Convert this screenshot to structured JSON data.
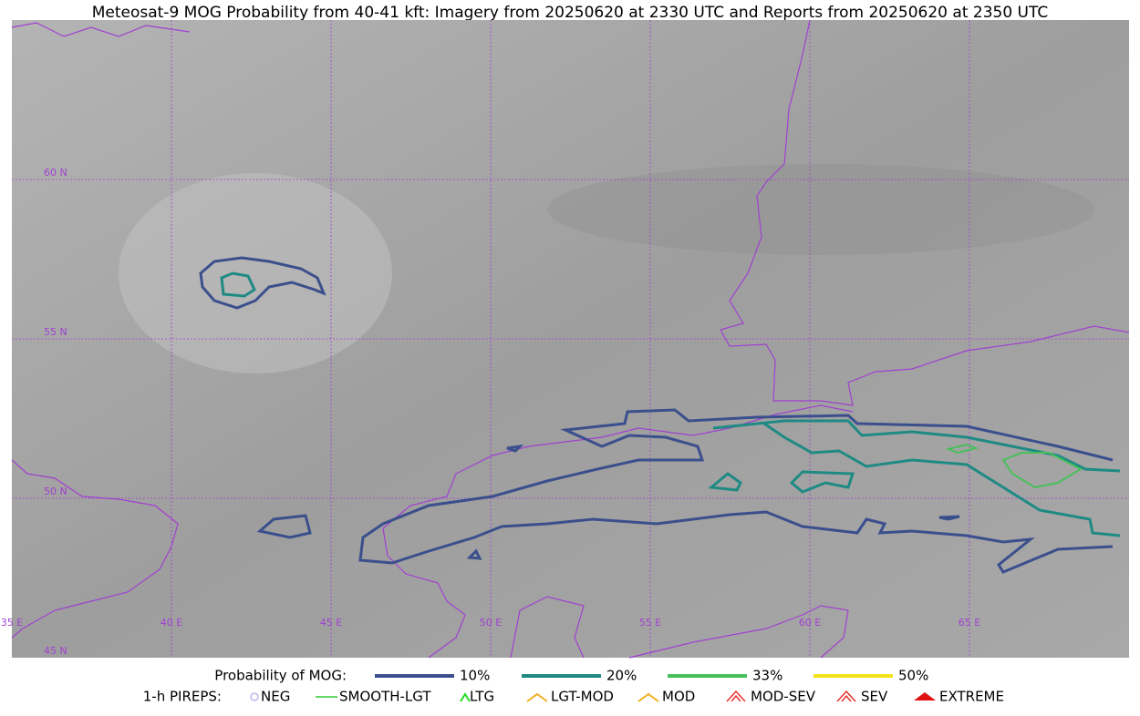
{
  "title": "Meteosat-9 MOG Probability from 40-41 kft: Imagery from 20250620 at 2330 UTC and Reports from 20250620 at 2350 UTC",
  "map": {
    "lat_labels": [
      "60 N",
      "55 N",
      "50 N",
      "45 N"
    ],
    "lon_labels": [
      "35 E",
      "40 E",
      "45 E",
      "50 E",
      "55 E",
      "60 E",
      "65 E"
    ]
  },
  "legend": {
    "probability": {
      "label": "Probability of MOG:",
      "items": [
        {
          "label": "10%",
          "color": "#3a4f8c"
        },
        {
          "label": "20%",
          "color": "#1f8a84"
        },
        {
          "label": "33%",
          "color": "#47c05a"
        },
        {
          "label": "50%",
          "color": "#f5e31a"
        }
      ]
    },
    "pireps": {
      "label": "1-h PIREPS:",
      "items": [
        {
          "label": "NEG",
          "color": "#b8b8f0"
        },
        {
          "label": "SMOOTH-LGT",
          "color": "#33cc33"
        },
        {
          "label": "LTG",
          "color": "#22dd22"
        },
        {
          "label": "LGT-MOD",
          "color": "#f0b020"
        },
        {
          "label": "MOD",
          "color": "#f0b020"
        },
        {
          "label": "MOD-SEV",
          "color": "#e83030"
        },
        {
          "label": "SEV",
          "color": "#e83030"
        },
        {
          "label": "EXTREME",
          "color": "#e01010"
        }
      ]
    }
  }
}
